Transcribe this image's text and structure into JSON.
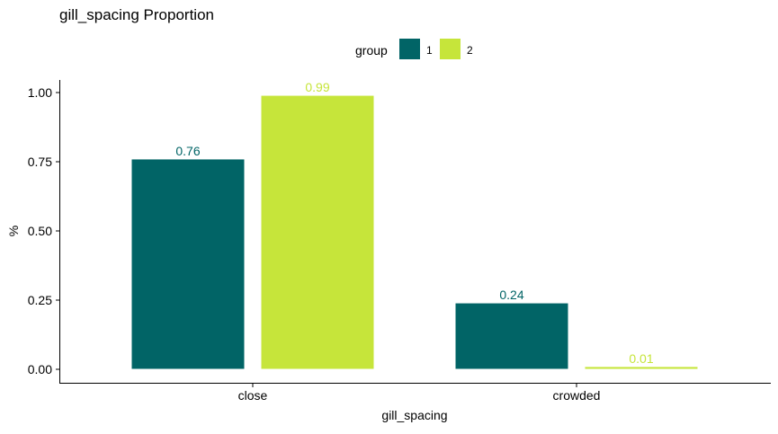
{
  "chart_data": {
    "type": "bar",
    "title": "gill_spacing Proportion",
    "xlabel": "gill_spacing",
    "ylabel": "%",
    "categories": [
      "close",
      "crowded"
    ],
    "series": [
      {
        "name": "1",
        "color": "#016466",
        "values": [
          0.76,
          0.24
        ],
        "labels": [
          "0.76",
          "0.24"
        ]
      },
      {
        "name": "2",
        "color": "#c6e53a",
        "values": [
          0.99,
          0.01
        ],
        "labels": [
          "0.99",
          "0.01"
        ]
      }
    ],
    "ylim": [
      -0.05,
      1.03
    ],
    "yticks": [
      0,
      0.25,
      0.5,
      0.75,
      1.0
    ],
    "ytick_labels": [
      "0.00",
      "0.25",
      "0.50",
      "0.75",
      "1.00"
    ],
    "legend": {
      "title": "group",
      "position": "top"
    },
    "grid": false
  }
}
